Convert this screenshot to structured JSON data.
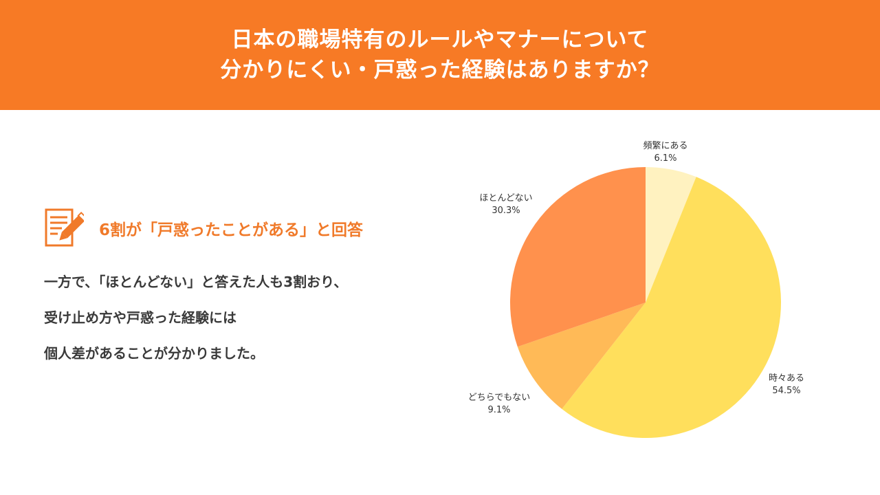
{
  "header": {
    "title_line1": "日本の職場特有のルールやマナーについて",
    "title_line2": "分かりにくい・戸惑った経験はありますか？",
    "background": "#f77a25"
  },
  "summary": {
    "icon": "memo-pencil-icon",
    "headline": "6割が「戸惑ったことがある」と回答",
    "lines": [
      "一方で、「ほとんどない」と答えた人も3割おり、",
      "受け止め方や戸惑った経験には",
      "個人差があることが分かりました。"
    ]
  },
  "chart_data": {
    "type": "pie",
    "start": "12 o'clock, clockwise",
    "slices": [
      {
        "label": "頻繁にある",
        "value": 6.1,
        "display": "6.1%",
        "color": "#fff2c0"
      },
      {
        "label": "時々ある",
        "value": 54.5,
        "display": "54.5%",
        "color": "#ffdf5c"
      },
      {
        "label": "どちらでもない",
        "value": 9.1,
        "display": "9.1%",
        "color": "#ffba57"
      },
      {
        "label": "ほとんどない",
        "value": 30.3,
        "display": "30.3%",
        "color": "#ff914d"
      }
    ]
  }
}
